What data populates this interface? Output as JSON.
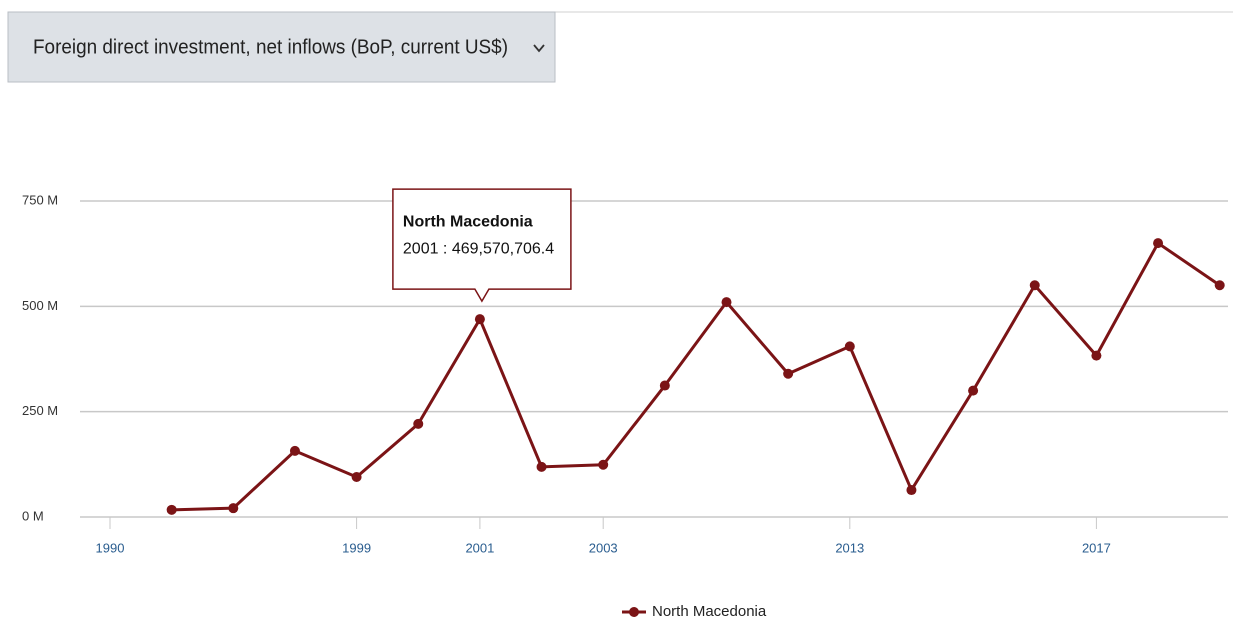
{
  "indicator_select": {
    "label": "Foreign direct investment, net inflows (BoP, current US$)"
  },
  "chart_data": {
    "type": "line",
    "categories": [
      "1990",
      null,
      null,
      null,
      "1999",
      null,
      "2001",
      null,
      "2003",
      null,
      null,
      null,
      "2013",
      null,
      null,
      null,
      "2017",
      null,
      null
    ],
    "series": [
      {
        "name": "North Macedonia",
        "color": "#7b1416",
        "values": [
          null,
          17000000,
          21000000,
          157000000,
          95000000,
          221000000,
          469570706.4,
          119000000,
          124000000,
          312000000,
          510000000,
          340000000,
          405000000,
          64000000,
          300000000,
          550000000,
          383000000,
          650000000,
          550000000
        ],
        "value_labels": [
          null,
          null,
          null,
          null,
          null,
          null,
          "2001 : 469,570,706.4",
          null,
          null,
          null,
          null,
          null,
          null,
          null,
          null,
          null,
          null,
          null,
          null
        ]
      }
    ],
    "ylim": [
      0,
      750000000
    ],
    "yticks": [
      {
        "value": 0,
        "label": "0 M"
      },
      {
        "value": 250000000,
        "label": "250 M"
      },
      {
        "value": 500000000,
        "label": "500 M"
      },
      {
        "value": 750000000,
        "label": "750 M"
      }
    ],
    "grid": true,
    "legend": "bottom"
  }
}
